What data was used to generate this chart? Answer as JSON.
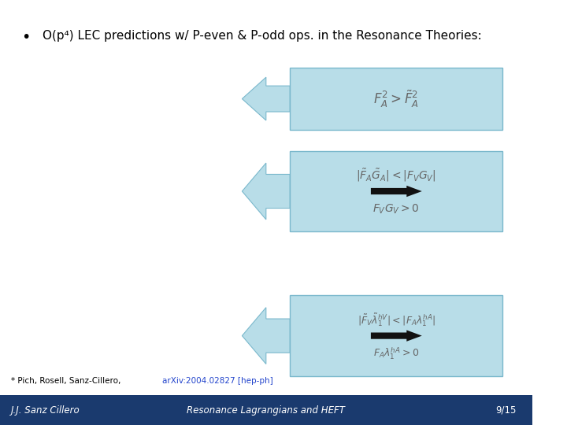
{
  "title": "O(p⁴) LEC predictions w/ P-even & P-odd ops. in the Resonance Theories:",
  "bullet": "•",
  "bg_color": "#ffffff",
  "box_color": "#b8dde8",
  "box_edge_color": "#7ab8cc",
  "arrow_color": "#b8dde8",
  "arrow_edge_color": "#7ab8cc",
  "footer_bg": "#1a3a6e",
  "footer_text_left": "J.J. Sanz Cillero",
  "footer_text_center": "Resonance Lagrangians and HEFT",
  "footer_text_right": "9/15",
  "footnote_plain": "* Pich, Rosell, Sanz-Cillero, ",
  "footnote_link": "arXiv:2004.02827 [hep-ph]"
}
